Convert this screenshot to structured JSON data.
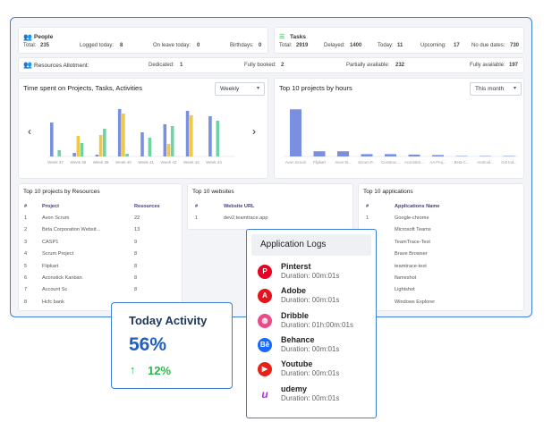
{
  "people": {
    "title": "People",
    "total_label": "Total:",
    "total": "235",
    "logged_label": "Logged today:",
    "logged": "8",
    "leave_label": "On leave today:",
    "leave": "0",
    "birthdays_label": "Birthdays:",
    "birthdays": "0"
  },
  "tasks": {
    "title": "Tasks",
    "total_label": "Total:",
    "total": "2919",
    "delayed_label": "Delayed:",
    "delayed": "1400",
    "today_label": "Today:",
    "today": "11",
    "upcoming_label": "Upcoming:",
    "upcoming": "17",
    "nodue_label": "No due dates:",
    "nodue": "730"
  },
  "allotment": {
    "title": "Resources Allotment:",
    "dedicated_label": "Dedicated:",
    "dedicated": "1",
    "fully_booked_label": "Fully booked:",
    "fully_booked": "2",
    "partial_label": "Partially available:",
    "partial": "232",
    "fully_avail_label": "Fully available:",
    "fully_avail": "197"
  },
  "time_chart": {
    "title": "Time spent on Projects, Tasks, Activities",
    "period": "Weekly",
    "chart_data": {
      "type": "bar",
      "categories": [
        "Week 37",
        "Week 38",
        "Week 39",
        "Week 40",
        "Week 41",
        "Week 42",
        "Week 43",
        "Week 44"
      ],
      "series": [
        {
          "values": [
            38,
            4,
            2,
            53,
            27,
            36,
            51,
            45
          ]
        },
        {
          "values": [
            0,
            23,
            24,
            48,
            0,
            14,
            46,
            0
          ]
        },
        {
          "values": [
            7,
            15,
            31,
            3,
            21,
            34,
            0,
            40
          ]
        }
      ],
      "colors": [
        "#7b8fe0",
        "#f2c744",
        "#6fd3a6"
      ],
      "ylim": [
        0,
        60
      ]
    }
  },
  "top_projects_chart": {
    "title": "Top 10 projects by hours",
    "period": "This month",
    "chart_data": {
      "type": "bar",
      "categories": [
        "Avon Scrum",
        "Flipkart",
        "Avon Sl...",
        "Scrum P...",
        "Construc...",
        "Aconstick...",
        "AA Proj...",
        "Beta C...",
        "Android...",
        "Girl Ind..."
      ],
      "values": [
        100,
        11,
        11,
        5,
        5,
        4,
        3,
        1,
        1,
        1
      ],
      "color": "#7b8fe0",
      "ylim": [
        0,
        110
      ]
    }
  },
  "resources": {
    "title": "Top 10 projects by Resources",
    "headers": [
      "#",
      "Project",
      "Resources"
    ],
    "rows": [
      [
        "1",
        "Avon Scrum",
        "22"
      ],
      [
        "2",
        "Birla Corporation Websit...",
        "13"
      ],
      [
        "3",
        "CASP1",
        "9"
      ],
      [
        "4",
        "Scrum Project",
        "8"
      ],
      [
        "5",
        "Flipkart",
        "8"
      ],
      [
        "6",
        "Aconstick Kanban",
        "8"
      ],
      [
        "7",
        "Account Sc",
        "8"
      ],
      [
        "8",
        "Hcfc bank",
        ""
      ]
    ]
  },
  "websites": {
    "title": "Top 10 websites",
    "headers": [
      "#",
      "Website URL"
    ],
    "rows": [
      [
        "1",
        "dev2.teamtrace.app"
      ]
    ]
  },
  "applications": {
    "title": "Top 10 applications",
    "headers": [
      "#",
      "Applications Name"
    ],
    "rows": [
      [
        "1",
        "Google-chrome"
      ],
      [
        "",
        "Microsoft Teams"
      ],
      [
        "",
        "TeamTrace-Test"
      ],
      [
        "",
        "Brave Browser"
      ],
      [
        "",
        "teamtrace-test"
      ],
      [
        "",
        "flameshot"
      ],
      [
        "",
        "Lightshot"
      ],
      [
        "",
        "Windows Explorer"
      ]
    ]
  },
  "activity": {
    "title": "Today Activity",
    "percent": "56%",
    "change": "12%",
    "change_color": "#2db84d"
  },
  "app_logs": {
    "title": "Application Logs",
    "items": [
      {
        "name": "Pinterst",
        "duration": "Duration: 00m:01s",
        "icon": "pinterest-icon",
        "color": "#e60023",
        "glyph": "P"
      },
      {
        "name": "Adobe",
        "duration": "Duration: 00m:01s",
        "icon": "adobe-icon",
        "color": "#e3141b",
        "glyph": "A"
      },
      {
        "name": "Dribble",
        "duration": "Duration: 01h:00m:01s",
        "icon": "dribbble-icon",
        "color": "#ea4c89",
        "glyph": "◍"
      },
      {
        "name": "Behance",
        "duration": "Duration: 00m:01s",
        "icon": "behance-icon",
        "color": "#1769ff",
        "glyph": "Bē"
      },
      {
        "name": "Youtube",
        "duration": "Duration: 00m:01s",
        "icon": "youtube-icon",
        "color": "#e62117",
        "glyph": "▶"
      },
      {
        "name": "udemy",
        "duration": "Duration: 00m:01s",
        "icon": "udemy-icon",
        "color": "#a435f0",
        "glyph": "u"
      }
    ]
  }
}
